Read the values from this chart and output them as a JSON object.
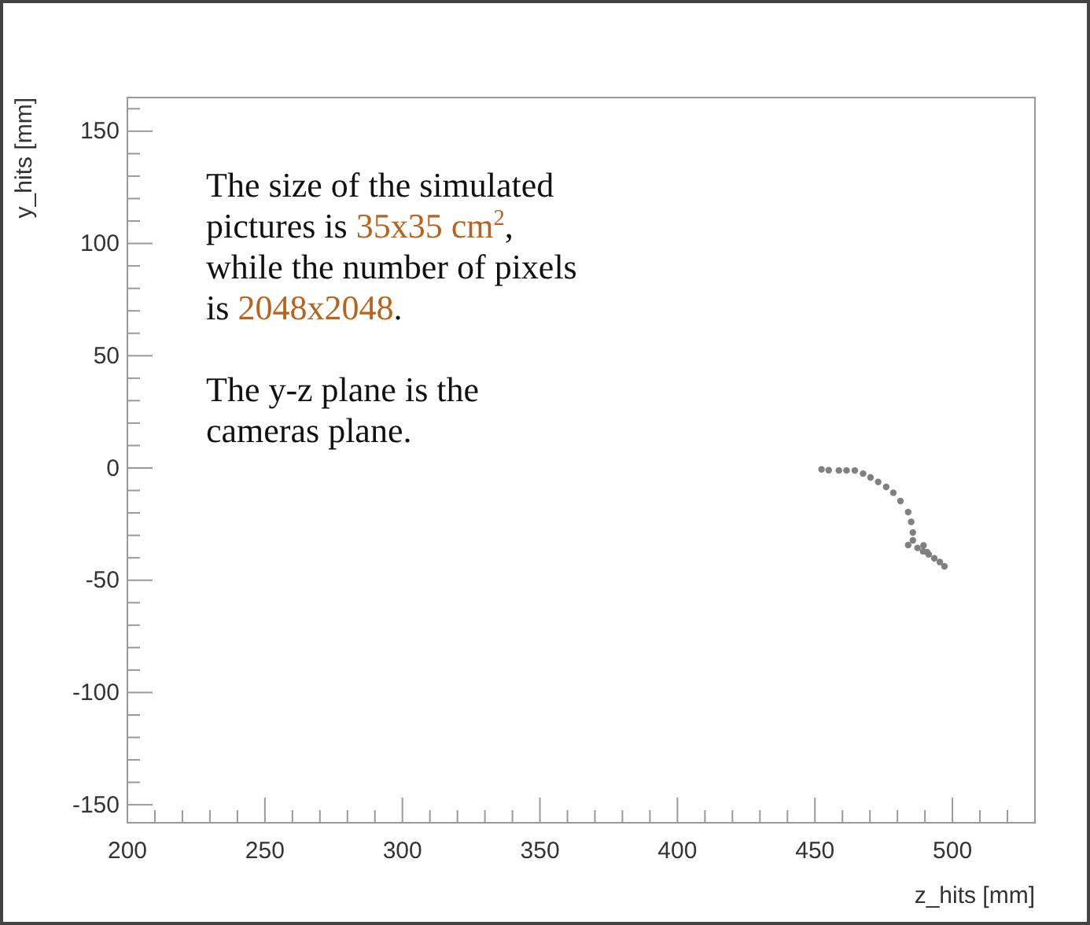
{
  "chart_data": {
    "type": "scatter",
    "xlabel": "z_hits [mm]",
    "ylabel": "y_hits [mm]",
    "xlim": [
      200,
      530
    ],
    "ylim": [
      -158,
      165
    ],
    "xticks": [
      200,
      {
        "value": 210,
        "label": null
      },
      {
        "value": 220,
        "label": null
      },
      {
        "value": 230,
        "label": null
      },
      {
        "value": 240,
        "label": null
      },
      250,
      {
        "value": 260,
        "label": null
      },
      {
        "value": 270,
        "label": null
      },
      {
        "value": 280,
        "label": null
      },
      {
        "value": 290,
        "label": null
      },
      300,
      {
        "value": 310,
        "label": null
      },
      {
        "value": 320,
        "label": null
      },
      {
        "value": 330,
        "label": null
      },
      {
        "value": 340,
        "label": null
      },
      350,
      {
        "value": 360,
        "label": null
      },
      {
        "value": 370,
        "label": null
      },
      {
        "value": 380,
        "label": null
      },
      {
        "value": 390,
        "label": null
      },
      400,
      {
        "value": 410,
        "label": null
      },
      {
        "value": 420,
        "label": null
      },
      {
        "value": 430,
        "label": null
      },
      {
        "value": 440,
        "label": null
      },
      450,
      {
        "value": 460,
        "label": null
      },
      {
        "value": 470,
        "label": null
      },
      {
        "value": 480,
        "label": null
      },
      {
        "value": 490,
        "label": null
      },
      500,
      {
        "value": 510,
        "label": null
      },
      {
        "value": 520,
        "label": null
      }
    ],
    "yticks": [
      -150,
      {
        "value": -140,
        "label": null
      },
      {
        "value": -130,
        "label": null
      },
      {
        "value": -120,
        "label": null
      },
      {
        "value": -110,
        "label": null
      },
      -100,
      {
        "value": -90,
        "label": null
      },
      {
        "value": -80,
        "label": null
      },
      {
        "value": -70,
        "label": null
      },
      {
        "value": -60,
        "label": null
      },
      -50,
      {
        "value": -40,
        "label": null
      },
      {
        "value": -30,
        "label": null
      },
      {
        "value": -20,
        "label": null
      },
      {
        "value": -10,
        "label": null
      },
      0,
      {
        "value": 10,
        "label": null
      },
      {
        "value": 20,
        "label": null
      },
      {
        "value": 30,
        "label": null
      },
      {
        "value": 40,
        "label": null
      },
      50,
      {
        "value": 60,
        "label": null
      },
      {
        "value": 70,
        "label": null
      },
      {
        "value": 80,
        "label": null
      },
      {
        "value": 90,
        "label": null
      },
      100,
      {
        "value": 110,
        "label": null
      },
      {
        "value": 120,
        "label": null
      },
      {
        "value": 130,
        "label": null
      },
      {
        "value": 140,
        "label": null
      },
      150,
      {
        "value": 160,
        "label": null
      }
    ],
    "grid": false,
    "marker": "circle",
    "series": [
      {
        "color": "#808080",
        "x": [
          452.4,
          455,
          458.7,
          461.5,
          464.5,
          467.5,
          470.2,
          473,
          475.9,
          478.5,
          481.1,
          483.9,
          485,
          485.6,
          485.6,
          483.9,
          487.3,
          489.3,
          491.4,
          493.4,
          495.4,
          497.1,
          489.5,
          490.8
        ],
        "values": [
          -0.6,
          -1,
          -1.1,
          -1.1,
          -1.1,
          -2.5,
          -4.2,
          -6.2,
          -8.4,
          -11,
          -14.7,
          -19.6,
          -24,
          -28.7,
          -32.2,
          -34.3,
          -35.6,
          -37.1,
          -38.5,
          -40.2,
          -41.9,
          -43.8,
          -34.5,
          -37.5
        ]
      }
    ],
    "annotations": [
      "The size of the simulated pictures is 35x35 cm$^{2}$, while the number of pixels is 2048x2048.",
      "The y-z plane is the cameras plane."
    ]
  }
}
